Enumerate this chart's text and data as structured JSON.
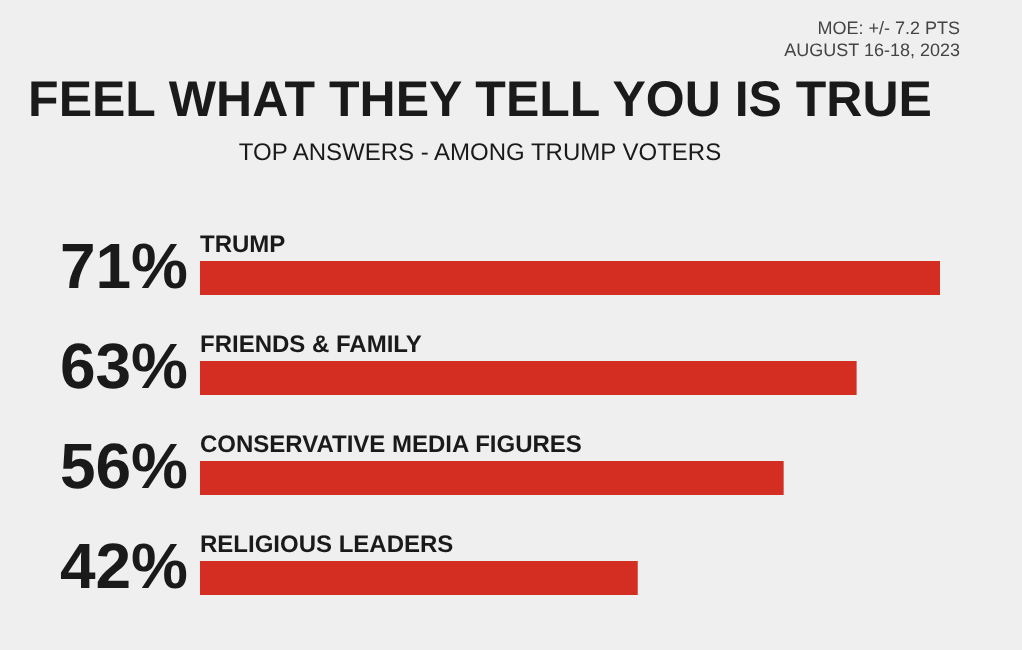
{
  "chart_data": {
    "type": "bar",
    "orientation": "horizontal",
    "title": "FEEL WHAT THEY TELL YOU IS TRUE",
    "subtitle": "TOP ANSWERS - AMONG TRUMP VOTERS",
    "categories": [
      "TRUMP",
      "FRIENDS & FAMILY",
      "CONSERVATIVE MEDIA FIGURES",
      "RELIGIOUS LEADERS"
    ],
    "values": [
      71,
      63,
      56,
      42
    ],
    "value_labels": [
      "71%",
      "63%",
      "56%",
      "42%"
    ],
    "color": "#d42e22",
    "annotations": [
      "MOE: +/- 7.2 PTS",
      "AUGUST 16-18, 2023"
    ]
  }
}
